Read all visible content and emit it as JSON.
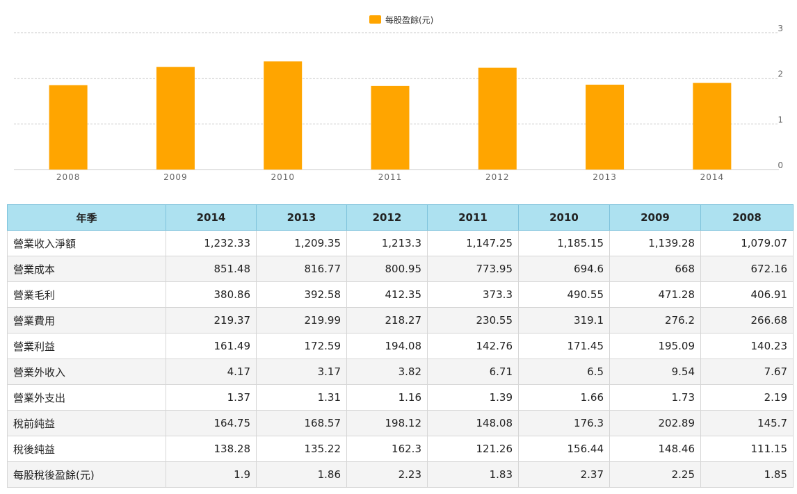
{
  "chart_data": {
    "type": "bar",
    "legend": "每股盈餘(元)",
    "legend_position": "top-center",
    "categories": [
      "2008",
      "2009",
      "2010",
      "2011",
      "2012",
      "2013",
      "2014"
    ],
    "series": [
      {
        "name": "每股盈餘(元)",
        "values": [
          1.85,
          2.25,
          2.37,
          1.83,
          2.23,
          1.86,
          1.9
        ]
      }
    ],
    "ylim": [
      0,
      3
    ],
    "yticks": [
      "0",
      "1",
      "2",
      "3"
    ],
    "y_axis_side": "right",
    "grid": "dashed horizontal",
    "bar_color": "#ffa500"
  },
  "table": {
    "header": [
      "年季",
      "2014",
      "2013",
      "2012",
      "2011",
      "2010",
      "2009",
      "2008"
    ],
    "rows": [
      [
        "營業收入淨額",
        "1,232.33",
        "1,209.35",
        "1,213.3",
        "1,147.25",
        "1,185.15",
        "1,139.28",
        "1,079.07"
      ],
      [
        "營業成本",
        "851.48",
        "816.77",
        "800.95",
        "773.95",
        "694.6",
        "668",
        "672.16"
      ],
      [
        "營業毛利",
        "380.86",
        "392.58",
        "412.35",
        "373.3",
        "490.55",
        "471.28",
        "406.91"
      ],
      [
        "營業費用",
        "219.37",
        "219.99",
        "218.27",
        "230.55",
        "319.1",
        "276.2",
        "266.68"
      ],
      [
        "營業利益",
        "161.49",
        "172.59",
        "194.08",
        "142.76",
        "171.45",
        "195.09",
        "140.23"
      ],
      [
        "營業外收入",
        "4.17",
        "3.17",
        "3.82",
        "6.71",
        "6.5",
        "9.54",
        "7.67"
      ],
      [
        "營業外支出",
        "1.37",
        "1.31",
        "1.16",
        "1.39",
        "1.66",
        "1.73",
        "2.19"
      ],
      [
        "稅前純益",
        "164.75",
        "168.57",
        "198.12",
        "148.08",
        "176.3",
        "202.89",
        "145.7"
      ],
      [
        "稅後純益",
        "138.28",
        "135.22",
        "162.3",
        "121.26",
        "156.44",
        "148.46",
        "111.15"
      ],
      [
        "每股稅後盈餘(元)",
        "1.9",
        "1.86",
        "2.23",
        "1.83",
        "2.37",
        "2.25",
        "1.85"
      ]
    ]
  }
}
